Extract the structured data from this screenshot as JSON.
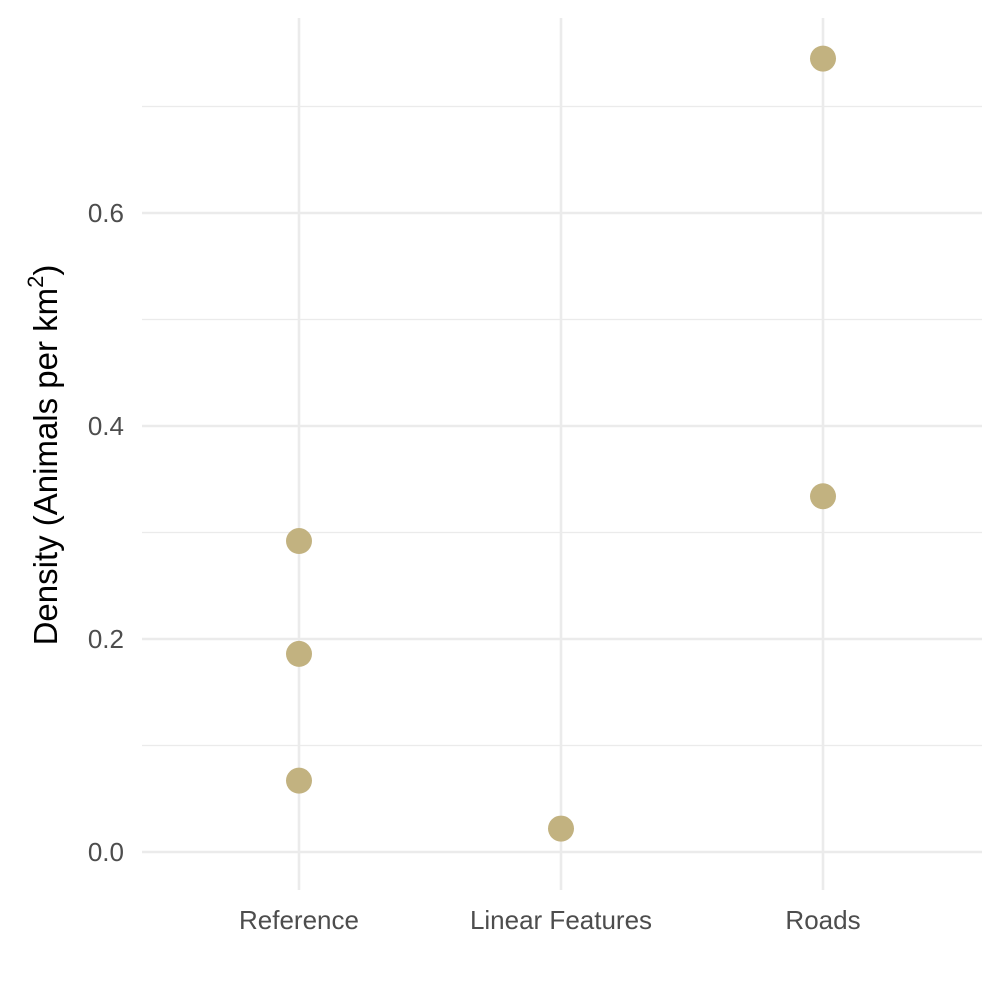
{
  "chart_data": {
    "type": "scatter",
    "categories": [
      "Reference",
      "Linear Features",
      "Roads"
    ],
    "series": [
      {
        "points": [
          {
            "x": "Reference",
            "y": 0.292
          },
          {
            "x": "Reference",
            "y": 0.186
          },
          {
            "x": "Reference",
            "y": 0.067
          },
          {
            "x": "Linear Features",
            "y": 0.022
          },
          {
            "x": "Roads",
            "y": 0.745
          },
          {
            "x": "Roads",
            "y": 0.334
          }
        ]
      }
    ],
    "xlabel": "",
    "ylabel": {
      "main": "Density (Animals per km",
      "superscript": "2",
      "close": ")"
    },
    "yticks": [
      "0.0",
      "0.2",
      "0.4",
      "0.6"
    ],
    "ylim": [
      -0.037,
      0.782
    ],
    "grid": true,
    "point_color": "#c2b280"
  }
}
